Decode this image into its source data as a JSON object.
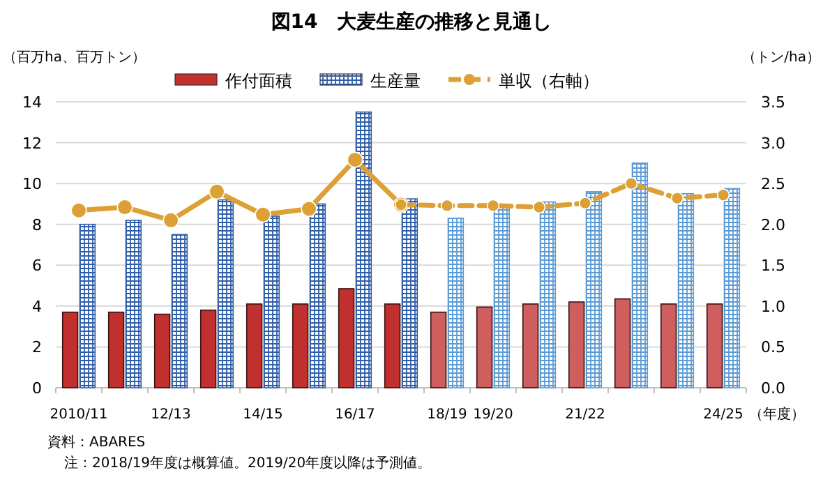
{
  "chart_data": {
    "type": "bar",
    "title": "図14　大麦生産の推移と見通し",
    "ylabel": "（百万ha、百万トン）",
    "y2label": "（トン/ha）",
    "xlabel": "（年度）",
    "categories": [
      "2010/11",
      null,
      "12/13",
      null,
      "14/15",
      null,
      "16/17",
      null,
      "18/19",
      "19/20",
      null,
      "21/22",
      null,
      null,
      "24/25"
    ],
    "series": [
      {
        "name": "作付面積",
        "color": "#c0302e",
        "colors": [
          "#c0302e",
          "#c0302e",
          "#c0302e",
          "#c0302e",
          "#c0302e",
          "#c0302e",
          "#c0302e",
          "#c0302e",
          "#cf5f5f",
          "#cf5f5f",
          "#cf5f5f",
          "#cf5f5f",
          "#cf5f5f",
          "#cf5f5f",
          "#cf5f5f"
        ],
        "values": [
          3.7,
          3.7,
          3.6,
          3.8,
          4.1,
          4.1,
          4.85,
          4.1,
          3.7,
          3.95,
          4.1,
          4.2,
          4.35,
          4.1,
          4.1
        ]
      },
      {
        "name": "生産量",
        "color": "#2f5ea8",
        "colors": [
          "#2f5ea8",
          "#2f5ea8",
          "#2f5ea8",
          "#2f5ea8",
          "#2f5ea8",
          "#2f5ea8",
          "#2f5ea8",
          "#2f5ea8",
          "#5b9bd5",
          "#5b9bd5",
          "#5b9bd5",
          "#5b9bd5",
          "#5b9bd5",
          "#5b9bd5",
          "#5b9bd5"
        ],
        "values": [
          8.0,
          8.2,
          7.5,
          9.2,
          8.4,
          9.0,
          13.5,
          9.25,
          8.3,
          8.85,
          9.1,
          9.6,
          11.0,
          9.5,
          9.75
        ]
      },
      {
        "type": "line",
        "axis": "y2",
        "color": "#dca034",
        "line_style": "solid",
        "marker": "circle",
        "values": [
          2.17,
          2.21,
          2.05,
          2.4,
          2.12,
          2.19,
          2.79,
          2.24,
          null,
          null,
          null,
          null,
          null,
          null,
          null
        ]
      },
      {
        "name": "単収（右軸）",
        "type": "line",
        "axis": "y2",
        "color": "#dca034",
        "line_style": "dashed",
        "marker": "circle",
        "values": [
          null,
          null,
          null,
          null,
          null,
          null,
          null,
          2.24,
          2.23,
          2.23,
          2.21,
          2.26,
          2.5,
          2.32,
          2.36
        ]
      }
    ],
    "ylim": [
      0,
      14
    ],
    "yticks": [
      0,
      2,
      4,
      6,
      8,
      10,
      12,
      14
    ],
    "y2lim": [
      0,
      3.5
    ],
    "y2ticks": [
      {
        "value": 0,
        "label": "0.0"
      },
      {
        "value": 0.5,
        "label": "0.5"
      },
      {
        "value": 1,
        "label": "1.0"
      },
      {
        "value": 1.5,
        "label": "1.5"
      },
      {
        "value": 2,
        "label": "2.0"
      },
      {
        "value": 2.5,
        "label": "2.5"
      },
      {
        "value": 3,
        "label": "3.0"
      },
      {
        "value": 3.5,
        "label": "3.5"
      }
    ],
    "grid": "y",
    "legend": "top",
    "annotations": [
      "資料：ABARES",
      "注：2018/19年度は概算値。2019/20年度以降は予測値。"
    ]
  }
}
